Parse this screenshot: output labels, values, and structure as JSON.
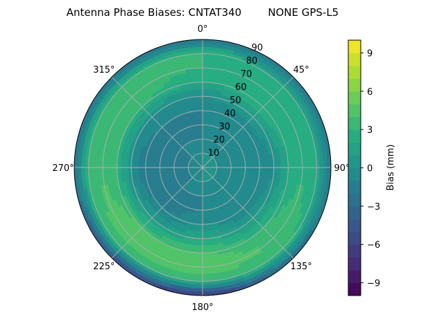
{
  "chart_data": {
    "type": "heatmap",
    "subtype": "polar-contour",
    "title": "Antenna Phase Biases: CNTAT340        NONE GPS-L5",
    "azimuth_direction": "clockwise",
    "azimuth_zero": "top",
    "azimuth_tick_labels": [
      "0°",
      "45°",
      "90°",
      "135°",
      "180°",
      "225°",
      "270°",
      "315°"
    ],
    "radial_tick_labels": [
      "10",
      "20",
      "30",
      "40",
      "50",
      "60",
      "70",
      "80",
      "90"
    ],
    "radial_range": [
      0,
      90
    ],
    "grid": true,
    "colormap": "viridis",
    "levels": [
      -10,
      10,
      1
    ],
    "colorbar": {
      "label": "Bias (mm)",
      "range": [
        -10,
        10
      ],
      "ticks": [
        "−9",
        "−6",
        "−3",
        "0",
        "3",
        "6",
        "9"
      ],
      "tick_values": [
        -9,
        -6,
        -3,
        0,
        3,
        6,
        9
      ],
      "placement": "right"
    },
    "azimuths": [
      0,
      45,
      90,
      135,
      180,
      225,
      270,
      315
    ],
    "zeniths": [
      0,
      10,
      20,
      30,
      40,
      50,
      60,
      70,
      80,
      90
    ],
    "values": [
      [
        0,
        0,
        -1,
        -1,
        -1,
        0,
        2,
        3,
        3,
        -2
      ],
      [
        0,
        0,
        -1,
        -1,
        -1,
        1,
        3,
        3,
        2,
        -2
      ],
      [
        0,
        0,
        -1,
        -1,
        -1,
        0,
        2,
        3,
        2,
        -2
      ],
      [
        0,
        0,
        0,
        -1,
        -1,
        1,
        3,
        4,
        3,
        -3
      ],
      [
        0,
        0,
        -1,
        -1,
        0,
        2,
        4,
        5,
        3,
        -7
      ],
      [
        0,
        -1,
        -1,
        -2,
        -1,
        1,
        4,
        5,
        3,
        -5
      ],
      [
        0,
        -1,
        -2,
        -2,
        -2,
        0,
        3,
        4,
        3,
        -2
      ],
      [
        0,
        -1,
        -1,
        -2,
        -1,
        0,
        3,
        4,
        3,
        -2
      ]
    ]
  }
}
